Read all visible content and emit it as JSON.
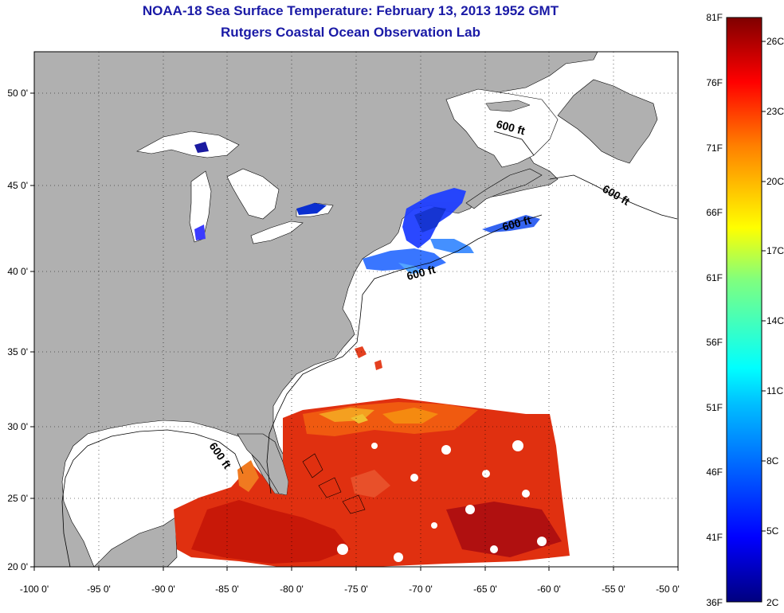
{
  "title": "NOAA-18 Sea Surface Temperature:  February 13, 2013 1952 GMT",
  "subtitle": "Rutgers Coastal Ocean Observation Lab",
  "map": {
    "lon_ticks": [
      "-100 0'",
      "-95 0'",
      "-90 0'",
      "-85 0'",
      "-80 0'",
      "-75 0'",
      "-70 0'",
      "-65 0'",
      "-60 0'",
      "-55 0'",
      "-50 0'"
    ],
    "lat_ticks": [
      "50 0'",
      "45 0'",
      "40 0'",
      "35 0'",
      "30 0'",
      "25 0'",
      "20 0'"
    ],
    "isobath_label": "600 ft",
    "colors": {
      "land": "#b0b0b0",
      "ocean_no_data": "#ffffff",
      "frame": "#000000"
    }
  },
  "colorbar": {
    "fahrenheit_labels": [
      "81F",
      "76F",
      "71F",
      "66F",
      "61F",
      "56F",
      "51F",
      "46F",
      "41F",
      "36F"
    ],
    "celsius_labels": [
      "26C",
      "23C",
      "20C",
      "17C",
      "14C",
      "11C",
      "8C",
      "5C",
      "2C"
    ],
    "colormap": "jet"
  }
}
